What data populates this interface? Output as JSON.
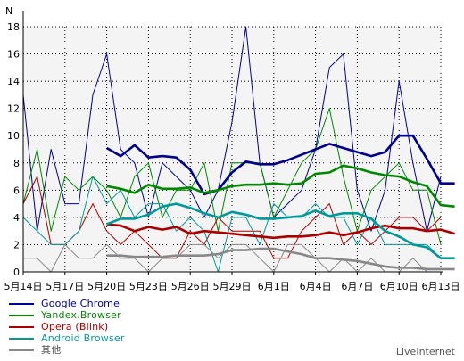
{
  "chart_data": {
    "type": "line",
    "ylabel": "N",
    "ylim": [
      0,
      18
    ],
    "yticks": [
      "0",
      "2",
      "4",
      "6",
      "8",
      "10",
      "12",
      "14",
      "16",
      "18"
    ],
    "xticks": [
      "5月14日",
      "5月17日",
      "5月20日",
      "5月23日",
      "5月26日",
      "5月29日",
      "6月1日",
      "6月4日",
      "6月7日",
      "6月10日",
      "6月13日"
    ],
    "x_count": 31,
    "grid": true,
    "plot_background": "#f4f4f4",
    "series": [
      {
        "name": "Google Chrome",
        "color": "#000090",
        "values": [
          13,
          3,
          9,
          5,
          5,
          13,
          16,
          9,
          8,
          4,
          8,
          7,
          6,
          4,
          6,
          11,
          18,
          8,
          4,
          5,
          6,
          9,
          15,
          16,
          6,
          3,
          6,
          14,
          8,
          3,
          7
        ],
        "trend_start": 6,
        "trend": [
          9.1,
          8.5,
          9.3,
          8.4,
          8.5,
          8.4,
          7.5,
          5.7,
          6.0,
          7.3,
          8.1,
          7.9,
          7.9,
          8.2,
          8.6,
          9.0,
          9.4,
          9.1,
          8.8,
          8.5,
          8.8,
          10.0,
          10.0,
          8.3,
          6.5,
          6.5
        ]
      },
      {
        "name": "Yandex.Browser",
        "color": "#008800",
        "values": [
          5,
          9,
          3,
          7,
          6,
          7,
          6,
          4,
          7,
          8,
          4,
          6,
          6,
          8,
          3,
          8,
          8,
          8,
          4,
          6,
          8,
          9,
          12,
          7,
          3,
          6,
          7,
          8,
          6,
          6,
          2
        ],
        "trend_start": 6,
        "trend": [
          6.3,
          6.1,
          5.8,
          6.4,
          6.1,
          6.1,
          6.2,
          5.8,
          6.0,
          6.3,
          6.4,
          6.4,
          6.5,
          6.4,
          6.5,
          7.2,
          7.3,
          7.8,
          7.6,
          7.3,
          7.1,
          7.0,
          6.6,
          6.3,
          4.9,
          4.8
        ]
      },
      {
        "name": "Opera (Blink)",
        "color": "#aa0000",
        "values": [
          5,
          7,
          2,
          2,
          3,
          5,
          3,
          2,
          3,
          2,
          1,
          1,
          3,
          2,
          4,
          3,
          3,
          3,
          1,
          1,
          3,
          4,
          5,
          2,
          3,
          2,
          3,
          4,
          4,
          3,
          4
        ],
        "trend_start": 6,
        "trend": [
          3.5,
          3.4,
          3.0,
          3.3,
          3.1,
          3.3,
          2.8,
          3.0,
          2.9,
          2.8,
          2.7,
          2.6,
          2.5,
          2.6,
          2.6,
          2.7,
          2.9,
          2.7,
          2.9,
          3.2,
          3.4,
          3.2,
          3.2,
          3.0,
          3.1,
          2.8
        ]
      },
      {
        "name": "Android Browser",
        "color": "#009999",
        "values": [
          4,
          3,
          2,
          2,
          3,
          7,
          5,
          6,
          4,
          5,
          5,
          3,
          4,
          3,
          0,
          4,
          4,
          2,
          5,
          4,
          4,
          5,
          4,
          4,
          2,
          4,
          2,
          2,
          2,
          2,
          1
        ],
        "trend_start": 6,
        "trend": [
          3.5,
          3.9,
          3.9,
          4.2,
          4.8,
          5.0,
          4.7,
          4.3,
          4.0,
          4.4,
          4.2,
          3.9,
          3.9,
          4.0,
          4.1,
          4.5,
          4.1,
          4.3,
          4.3,
          3.9,
          3.0,
          2.6,
          2.0,
          1.8,
          1.0,
          1.0
        ]
      },
      {
        "name": "其他",
        "color": "#888888",
        "values": [
          1,
          1,
          0,
          2,
          1,
          1,
          2,
          1,
          1,
          0,
          1,
          1,
          2,
          2,
          1,
          2,
          2,
          1,
          0,
          2,
          2,
          1,
          0,
          1,
          0,
          1,
          0,
          0,
          1,
          0,
          0
        ],
        "trend_start": 6,
        "trend": [
          1.2,
          1.2,
          1.1,
          1.1,
          1.1,
          1.2,
          1.2,
          1.2,
          1.3,
          1.6,
          1.6,
          1.7,
          1.7,
          1.5,
          1.3,
          1.0,
          1.0,
          0.9,
          0.8,
          0.6,
          0.4,
          0.3,
          0.3,
          0.2,
          0.2,
          0.2
        ]
      }
    ]
  },
  "brand_text": "LiveInternet"
}
